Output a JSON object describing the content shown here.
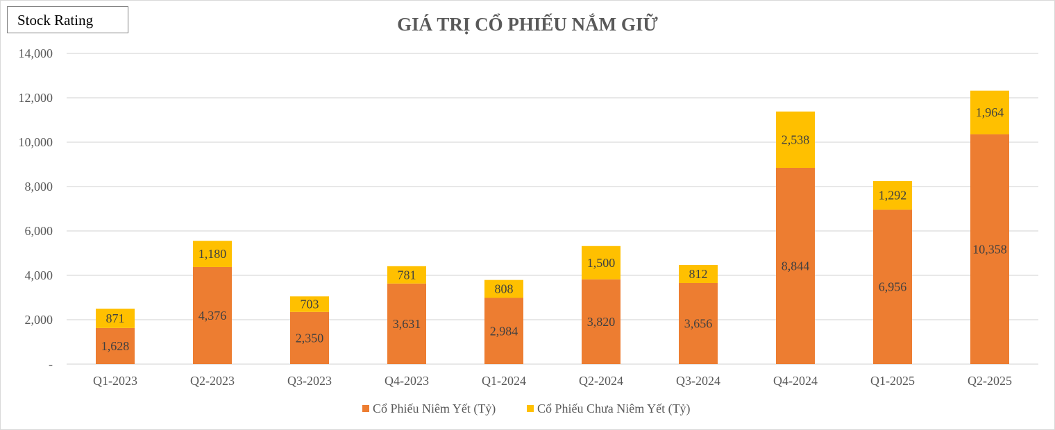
{
  "badge": "Stock Rating",
  "colors": {
    "listed": "#ED7D31",
    "unlisted": "#FFC000",
    "grid": "#d9d9d9",
    "text": "#595959"
  },
  "chart_data": {
    "type": "bar",
    "stacked": true,
    "title": "GIÁ TRỊ CỔ PHIẾU NẮM GIỮ",
    "categories": [
      "Q1-2023",
      "Q2-2023",
      "Q3-2023",
      "Q4-2023",
      "Q1-2024",
      "Q2-2024",
      "Q3-2024",
      "Q4-2024",
      "Q1-2025",
      "Q2-2025"
    ],
    "series": [
      {
        "name": "Cổ Phiếu Niêm Yết (Tỷ)",
        "color": "#ED7D31",
        "values": [
          1628,
          4376,
          2350,
          3631,
          2984,
          3820,
          3656,
          8844,
          6956,
          10358
        ],
        "labels": [
          "1,628",
          "4,376",
          "2,350",
          "3,631",
          "2,984",
          "3,820",
          "3,656",
          "8,844",
          "6,956",
          "10,358"
        ]
      },
      {
        "name": "Cổ Phiếu Chưa Niêm Yết (Tỷ)",
        "color": "#FFC000",
        "values": [
          871,
          1180,
          703,
          781,
          808,
          1500,
          812,
          2538,
          1292,
          1964
        ],
        "labels": [
          "871",
          "1,180",
          "703",
          "781",
          "808",
          "1,500",
          "812",
          "2,538",
          "1,292",
          "1,964"
        ]
      }
    ],
    "ylim": [
      0,
      14000
    ],
    "yticks": [
      0,
      2000,
      4000,
      6000,
      8000,
      10000,
      12000,
      14000
    ],
    "ytick_labels": [
      "-",
      "2,000",
      "4,000",
      "6,000",
      "8,000",
      "10,000",
      "12,000",
      "14,000"
    ],
    "grid": true,
    "legend": "bottom"
  }
}
